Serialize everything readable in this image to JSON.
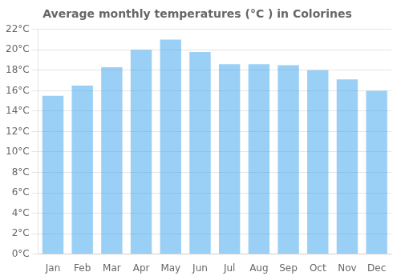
{
  "chart_data": {
    "type": "bar",
    "title": "Average monthly temperatures (°C ) in Colorines",
    "categories": [
      "Jan",
      "Feb",
      "Mar",
      "Apr",
      "May",
      "Jun",
      "Jul",
      "Aug",
      "Sep",
      "Oct",
      "Nov",
      "Dec"
    ],
    "values": [
      15.5,
      16.5,
      18.3,
      20.0,
      21.0,
      19.8,
      18.6,
      18.6,
      18.5,
      18.0,
      17.1,
      16.0
    ],
    "ylim": [
      0,
      22
    ],
    "yticks": [
      {
        "value": 0,
        "label": "0°C"
      },
      {
        "value": 2,
        "label": "2°C"
      },
      {
        "value": 4,
        "label": "4°C"
      },
      {
        "value": 6,
        "label": "6°C"
      },
      {
        "value": 8,
        "label": "8°C"
      },
      {
        "value": 10,
        "label": "10°C"
      },
      {
        "value": 12,
        "label": "12°C"
      },
      {
        "value": 14,
        "label": "14°C"
      },
      {
        "value": 16,
        "label": "16°C"
      },
      {
        "value": 18,
        "label": "18°C"
      },
      {
        "value": 20,
        "label": "20°C"
      },
      {
        "value": 22,
        "label": "22°C"
      }
    ],
    "grid": true
  }
}
